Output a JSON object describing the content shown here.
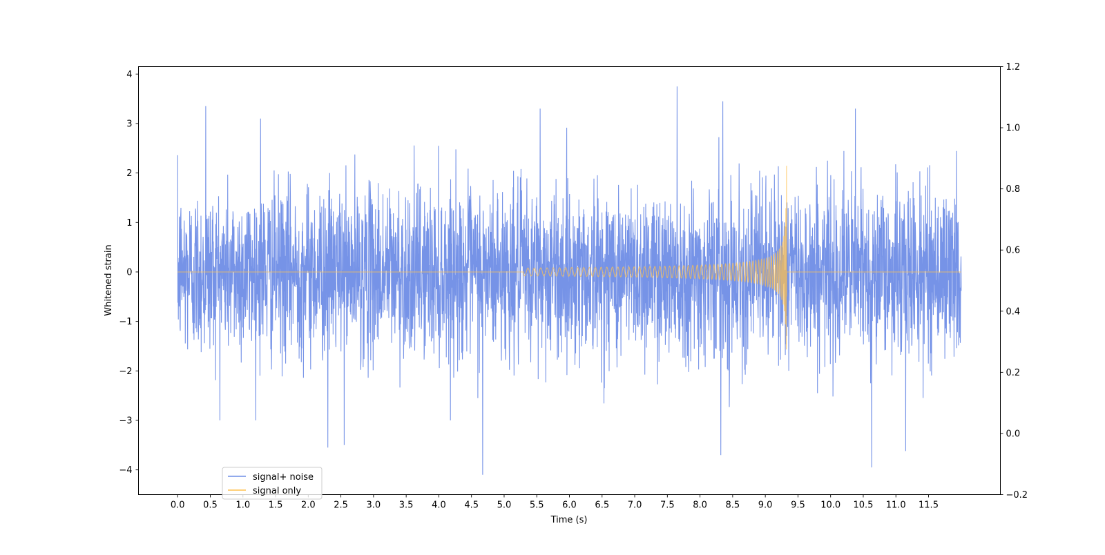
{
  "chart_data": {
    "type": "line",
    "xlabel": "Time (s)",
    "ylabel": "Whitened strain",
    "xlim": [
      -0.6,
      12.6
    ],
    "ylim": [
      -4.5,
      4.15
    ],
    "y2lim": [
      -0.2,
      1.2
    ],
    "x_ticks": [
      0.0,
      0.5,
      1.0,
      1.5,
      2.0,
      2.5,
      3.0,
      3.5,
      4.0,
      4.5,
      5.0,
      5.5,
      6.0,
      6.5,
      7.0,
      7.5,
      8.0,
      8.5,
      9.0,
      9.5,
      10.0,
      10.5,
      11.0,
      11.5
    ],
    "x_tick_labels": [
      "0.0",
      "0.5",
      "1.0",
      "1.5",
      "2.0",
      "2.5",
      "3.0",
      "3.5",
      "4.0",
      "4.5",
      "5.0",
      "5.5",
      "6.0",
      "6.5",
      "7.0",
      "7.5",
      "8.0",
      "8.5",
      "9.0",
      "9.5",
      "10.0",
      "10.5",
      "11.0",
      "11.5"
    ],
    "y_ticks": [
      -4,
      -3,
      -2,
      -1,
      0,
      1,
      2,
      3,
      4
    ],
    "y_tick_labels": [
      "−4",
      "−3",
      "−2",
      "−1",
      "0",
      "1",
      "2",
      "3",
      "4"
    ],
    "y2_ticks": [
      -0.2,
      0.0,
      0.2,
      0.4,
      0.6,
      0.8,
      1.0,
      1.2
    ],
    "y2_tick_labels": [
      "−0.2",
      "0.0",
      "0.2",
      "0.4",
      "0.6",
      "0.8",
      "1.0",
      "1.2"
    ],
    "grid": false,
    "legend_position": "lower-left",
    "series": [
      {
        "name": "signal+ noise",
        "color": "#6f8de6",
        "x_range": [
          0.0,
          12.0
        ],
        "approx_std": 0.85,
        "notable_peaks": [
          {
            "x": 0.43,
            "y": 3.35
          },
          {
            "x": 1.27,
            "y": 3.1
          },
          {
            "x": 2.3,
            "y": -3.55
          },
          {
            "x": 2.55,
            "y": -3.5
          },
          {
            "x": 4.67,
            "y": -4.1
          },
          {
            "x": 5.55,
            "y": 3.3
          },
          {
            "x": 7.65,
            "y": 3.75
          },
          {
            "x": 8.32,
            "y": -3.7
          },
          {
            "x": 8.35,
            "y": 3.45
          },
          {
            "x": 10.38,
            "y": 3.3
          },
          {
            "x": 10.63,
            "y": -3.95
          },
          {
            "x": 11.15,
            "y": -3.62
          }
        ]
      },
      {
        "name": "signal only",
        "color": "#ffc14d",
        "chirp_start": 5.3,
        "merger_time": 9.33,
        "peak_amplitude": 2.4
      }
    ]
  }
}
